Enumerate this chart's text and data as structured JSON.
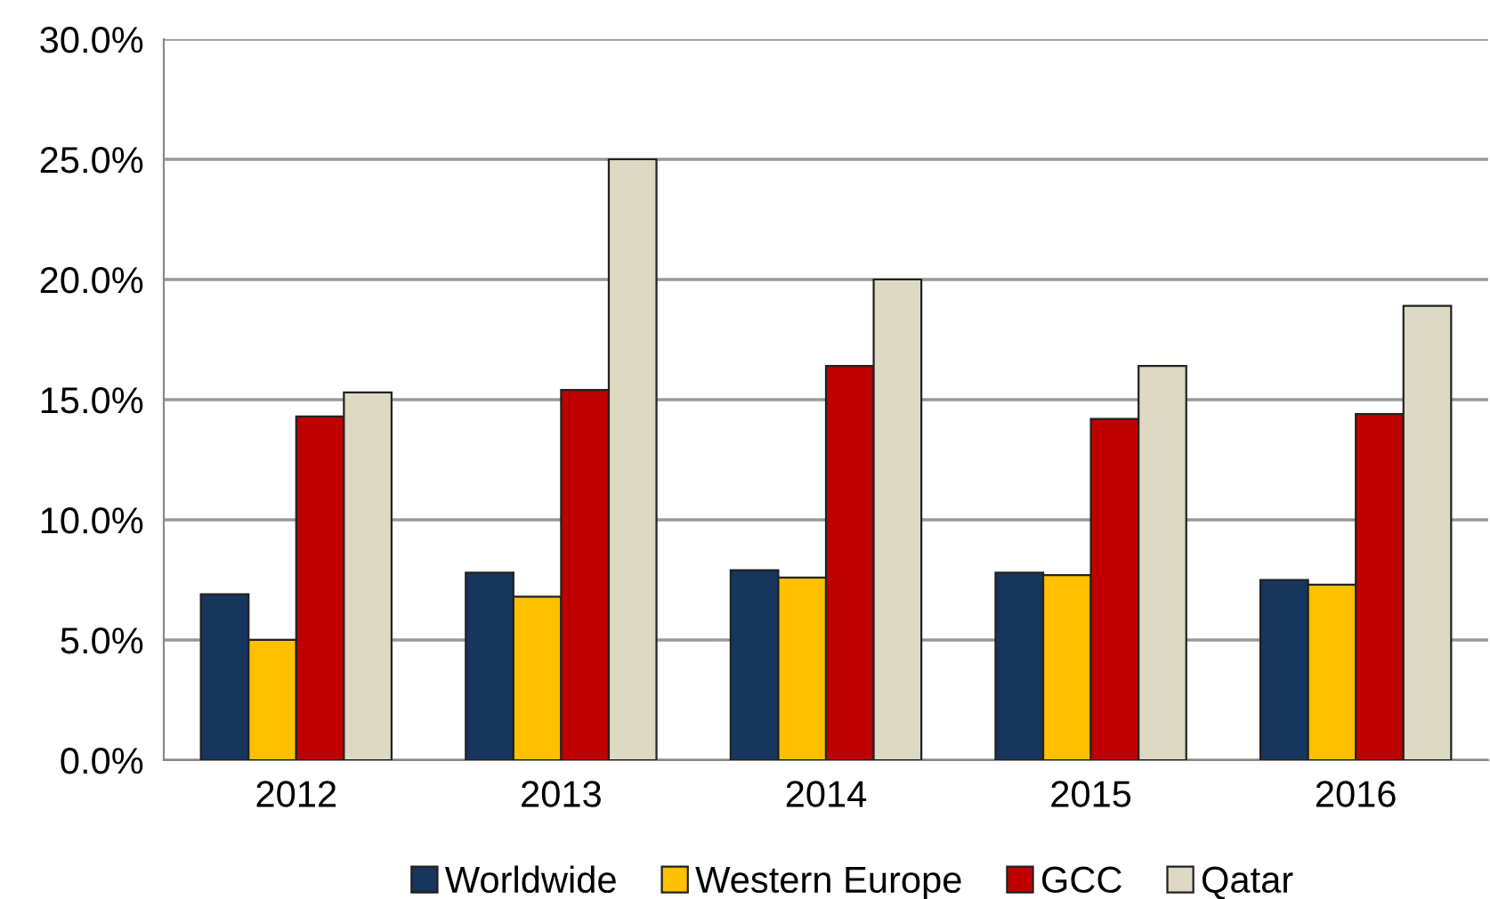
{
  "chart_data": {
    "type": "bar",
    "categories": [
      "2012",
      "2013",
      "2014",
      "2015",
      "2016"
    ],
    "series": [
      {
        "name": "Worldwide",
        "color": "#17365d",
        "values": [
          6.9,
          7.8,
          7.9,
          7.8,
          7.5
        ]
      },
      {
        "name": "Western Europe",
        "color": "#ffc000",
        "values": [
          5.0,
          6.8,
          7.6,
          7.7,
          7.3
        ]
      },
      {
        "name": "GCC",
        "color": "#c00000",
        "values": [
          14.3,
          15.4,
          16.4,
          14.2,
          14.4
        ]
      },
      {
        "name": "Qatar",
        "color": "#ddd9c3",
        "values": [
          15.3,
          25.0,
          20.0,
          16.4,
          18.9
        ]
      }
    ],
    "ylim": [
      0,
      30
    ],
    "yticks": [
      {
        "value": 0,
        "label": "0.0%"
      },
      {
        "value": 5,
        "label": "5.0%"
      },
      {
        "value": 10,
        "label": "10.0%"
      },
      {
        "value": 15,
        "label": "15.0%"
      },
      {
        "value": 20,
        "label": "20.0%"
      },
      {
        "value": 25,
        "label": "25.0%"
      },
      {
        "value": 30,
        "label": "30.0%"
      }
    ],
    "grid": "y",
    "legend": "bottom"
  }
}
